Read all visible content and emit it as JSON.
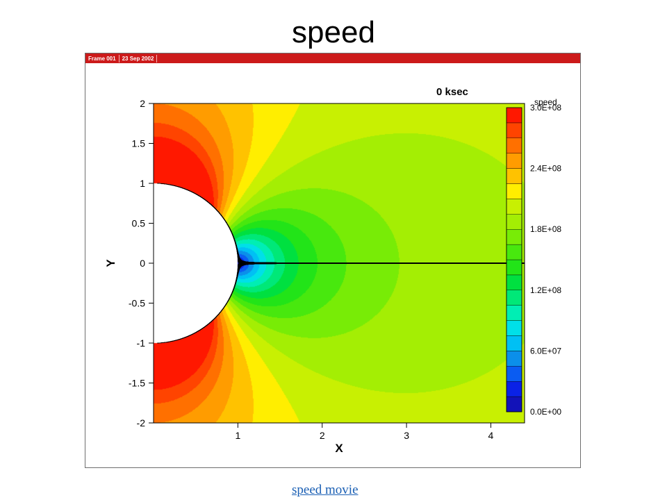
{
  "slide": {
    "title": "speed",
    "link_label": "speed movie"
  },
  "frame": {
    "header": [
      "Frame 001",
      "23 Sep 2002"
    ]
  },
  "chart_data": {
    "type": "heatmap",
    "title": "0 ksec",
    "xlabel": "X",
    "ylabel": "Y",
    "xlim": [
      0,
      4.4
    ],
    "ylim": [
      -2,
      2
    ],
    "xticks": [
      "1",
      "2",
      "3",
      "4"
    ],
    "yticks": [
      "2",
      "1.5",
      "1",
      "0.5",
      "0",
      "-0.5",
      "-1",
      "-1.5",
      "-2"
    ],
    "obstacle_radius": 1,
    "field": "speed",
    "legend": {
      "title": "speed",
      "position": "right",
      "labels": [
        "3.0E+08",
        "2.4E+08",
        "1.8E+08",
        "1.2E+08",
        "6.0E+07",
        "0.0E+00"
      ],
      "vmin": 0,
      "vmax": 300000000
    },
    "colors": [
      "#1212b8",
      "#0a22e6",
      "#0a5cf2",
      "#0b8fea",
      "#00c0f4",
      "#00e0e8",
      "#00eeb4",
      "#00e878",
      "#00e040",
      "#22e418",
      "#48e80e",
      "#78ec06",
      "#a4ee04",
      "#c8f002",
      "#ffee00",
      "#ffc200",
      "#ff9c00",
      "#ff7000",
      "#ff4400",
      "#ff1800"
    ]
  }
}
